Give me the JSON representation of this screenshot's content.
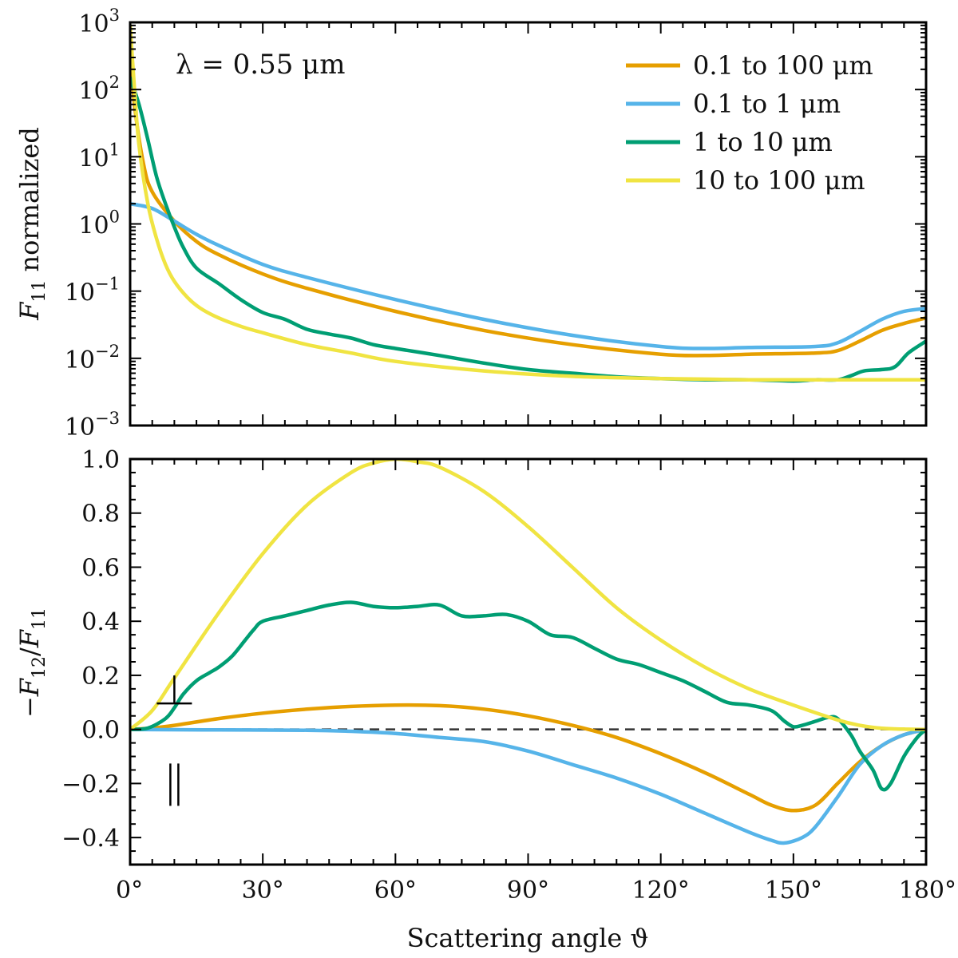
{
  "colors": {
    "range_0_1_to_100": "#E69F00",
    "range_0_1_to_1": "#56B4E9",
    "range_1_to_10": "#009E73",
    "range_10_to_100": "#F0E442"
  },
  "chart_data": [
    {
      "type": "line",
      "panel": "top",
      "yscale": "log",
      "xlim": [
        0,
        180
      ],
      "ylim": [
        0.001,
        1000
      ],
      "ylabel": "F11 normalized",
      "annotation": "λ = 0.55 μm",
      "legend_position": "top-right",
      "ytick_exponents": [
        "3",
        "2",
        "1",
        "0",
        "−1",
        "−2",
        "−3"
      ],
      "series": [
        {
          "name": "0.1 to 100 μm",
          "color_key": "range_0_1_to_100",
          "x": [
            0,
            1,
            3,
            5,
            10,
            15,
            20,
            30,
            40,
            60,
            80,
            100,
            120,
            130,
            140,
            155,
            160,
            165,
            170,
            175,
            180
          ],
          "y": [
            500,
            60,
            8,
            3,
            1.1,
            0.55,
            0.35,
            0.18,
            0.11,
            0.05,
            0.026,
            0.016,
            0.0115,
            0.011,
            0.0115,
            0.012,
            0.013,
            0.018,
            0.026,
            0.033,
            0.04
          ]
        },
        {
          "name": "0.1 to 1 μm",
          "color_key": "range_0_1_to_1",
          "x": [
            0,
            5,
            10,
            15,
            20,
            30,
            40,
            60,
            80,
            100,
            120,
            130,
            140,
            155,
            160,
            165,
            170,
            175,
            180
          ],
          "y": [
            2.0,
            1.7,
            1.1,
            0.7,
            0.48,
            0.25,
            0.16,
            0.075,
            0.038,
            0.022,
            0.015,
            0.014,
            0.0145,
            0.015,
            0.017,
            0.025,
            0.038,
            0.05,
            0.055
          ]
        },
        {
          "name": "1 to 10 μm",
          "color_key": "range_1_to_10",
          "x": [
            0,
            2,
            4,
            6,
            8,
            10,
            12,
            15,
            20,
            25,
            30,
            35,
            40,
            45,
            50,
            55,
            60,
            70,
            80,
            90,
            100,
            110,
            120,
            130,
            140,
            150,
            155,
            160,
            163,
            166,
            170,
            173,
            176,
            180
          ],
          "y": [
            150,
            60,
            18,
            5,
            2,
            0.9,
            0.45,
            0.22,
            0.13,
            0.075,
            0.048,
            0.038,
            0.027,
            0.023,
            0.02,
            0.016,
            0.014,
            0.011,
            0.0085,
            0.0068,
            0.006,
            0.0053,
            0.005,
            0.0048,
            0.0048,
            0.0046,
            0.0048,
            0.0048,
            0.0055,
            0.0065,
            0.0068,
            0.0075,
            0.012,
            0.018
          ]
        },
        {
          "name": "10 to 100 μm",
          "color_key": "range_10_to_100",
          "x": [
            0,
            1,
            2,
            4,
            6,
            8,
            10,
            13,
            16,
            20,
            25,
            30,
            40,
            50,
            60,
            80,
            100,
            120,
            140,
            160,
            180
          ],
          "y": [
            900,
            100,
            15,
            2,
            0.6,
            0.25,
            0.14,
            0.08,
            0.055,
            0.04,
            0.03,
            0.024,
            0.016,
            0.012,
            0.009,
            0.0065,
            0.0054,
            0.005,
            0.0048,
            0.0048,
            0.0048
          ]
        }
      ]
    },
    {
      "type": "line",
      "panel": "bottom",
      "xlim": [
        0,
        180
      ],
      "ylim": [
        -0.5,
        1.0
      ],
      "xlabel": "Scattering angle ϑ",
      "ylabel": "−F12/F11",
      "yticks": [
        1.0,
        0.8,
        0.6,
        0.4,
        0.2,
        0.0,
        -0.2,
        -0.4
      ],
      "ytick_labels": [
        "1.0",
        "0.8",
        "0.6",
        "0.4",
        "0.2",
        "0.0",
        "−0.2",
        "−0.4"
      ],
      "xticks": [
        0,
        30,
        60,
        90,
        120,
        150,
        180
      ],
      "xtick_labels": [
        "0°",
        "30°",
        "60°",
        "90°",
        "120°",
        "150°",
        "180°"
      ],
      "reference_line": 0,
      "annotations": [
        {
          "text": "⊥",
          "x": 10,
          "y": 0.17
        },
        {
          "text": "||",
          "x": 10,
          "y": -0.2
        }
      ],
      "series": [
        {
          "name": "0.1 to 100 μm",
          "color_key": "range_0_1_to_100",
          "x": [
            0,
            5,
            10,
            20,
            30,
            40,
            50,
            60,
            70,
            80,
            90,
            100,
            110,
            120,
            130,
            140,
            145,
            150,
            155,
            160,
            165,
            170,
            175,
            180
          ],
          "y": [
            0,
            0.005,
            0.015,
            0.04,
            0.06,
            0.075,
            0.085,
            0.09,
            0.088,
            0.075,
            0.05,
            0.015,
            -0.03,
            -0.09,
            -0.16,
            -0.24,
            -0.28,
            -0.3,
            -0.28,
            -0.2,
            -0.12,
            -0.06,
            -0.02,
            0
          ]
        },
        {
          "name": "0.1 to 1 μm",
          "color_key": "range_0_1_to_1",
          "x": [
            0,
            20,
            40,
            50,
            60,
            70,
            80,
            90,
            100,
            110,
            120,
            130,
            140,
            145,
            148,
            152,
            155,
            160,
            165,
            170,
            175,
            180
          ],
          "y": [
            0,
            -0.002,
            -0.003,
            -0.007,
            -0.015,
            -0.03,
            -0.045,
            -0.08,
            -0.13,
            -0.18,
            -0.24,
            -0.31,
            -0.38,
            -0.41,
            -0.42,
            -0.4,
            -0.36,
            -0.25,
            -0.13,
            -0.06,
            -0.02,
            0
          ]
        },
        {
          "name": "1 to 10 μm",
          "color_key": "range_1_to_10",
          "x": [
            0,
            4,
            8,
            10,
            12,
            15,
            18,
            20,
            23,
            26,
            28,
            30,
            35,
            40,
            45,
            50,
            55,
            60,
            65,
            70,
            75,
            80,
            85,
            90,
            95,
            100,
            105,
            110,
            115,
            120,
            125,
            130,
            135,
            140,
            145,
            148,
            150,
            152,
            155,
            158,
            160,
            163,
            165,
            168,
            170,
            172,
            175,
            178,
            180
          ],
          "y": [
            0,
            0.005,
            0.04,
            0.08,
            0.13,
            0.18,
            0.21,
            0.23,
            0.27,
            0.33,
            0.37,
            0.4,
            0.42,
            0.44,
            0.46,
            0.47,
            0.455,
            0.45,
            0.455,
            0.46,
            0.42,
            0.42,
            0.425,
            0.4,
            0.35,
            0.34,
            0.3,
            0.26,
            0.24,
            0.21,
            0.18,
            0.14,
            0.1,
            0.09,
            0.07,
            0.03,
            0.01,
            0.015,
            0.03,
            0.045,
            0.04,
            -0.02,
            -0.08,
            -0.15,
            -0.22,
            -0.2,
            -0.1,
            -0.03,
            0
          ]
        },
        {
          "name": "10 to 100 μm",
          "color_key": "range_10_to_100",
          "x": [
            0,
            5,
            10,
            20,
            30,
            40,
            50,
            55,
            60,
            65,
            70,
            80,
            90,
            100,
            110,
            120,
            130,
            140,
            150,
            160,
            165,
            170,
            175,
            180
          ],
          "y": [
            0,
            0.07,
            0.19,
            0.43,
            0.65,
            0.83,
            0.95,
            0.985,
            1.0,
            0.99,
            0.97,
            0.88,
            0.75,
            0.6,
            0.45,
            0.33,
            0.23,
            0.15,
            0.09,
            0.035,
            0.015,
            0.004,
            0.001,
            0
          ]
        }
      ]
    }
  ]
}
